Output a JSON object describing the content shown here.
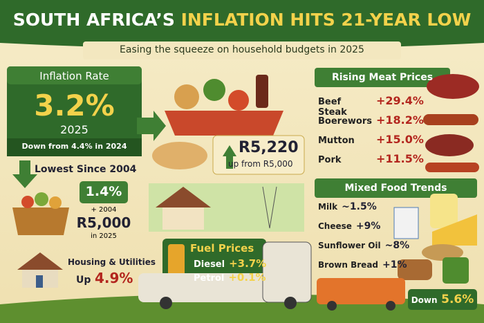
{
  "header": {
    "title_lead": "SOUTH AFRICA’S",
    "title_highlight": "INFLATION HITS 21-YEAR LOW",
    "subtitle": "Easing the squeeze on household budgets in 2025"
  },
  "inflation": {
    "label": "Inflation Rate",
    "value": "3.2%",
    "year": "2025",
    "note": "Down from 4.4% in 2024"
  },
  "lowest": {
    "label": "Lowest Since 2004",
    "value": "1.4%",
    "year": "+ 2004",
    "amount": "R5,000",
    "amount_year": "in 2025"
  },
  "housing": {
    "label": "Housing & Utilities",
    "prefix": "Up",
    "value": "4.9%"
  },
  "basket": {
    "price": "R5,220",
    "note": "up from R5,000"
  },
  "fuel": {
    "title": "Fuel Prices",
    "items": [
      {
        "name": "Diesel",
        "change": "+3.7%"
      },
      {
        "name": "Petrol",
        "change": "+0.1%"
      }
    ]
  },
  "meat": {
    "title": "Rising Meat Prices",
    "items": [
      {
        "name": "Beef Steak",
        "change": "+29.4%"
      },
      {
        "name": "Boerewors",
        "change": "+18.2%"
      },
      {
        "name": "Mutton",
        "change": "+15.0%"
      },
      {
        "name": "Pork",
        "change": "+11.5%"
      }
    ]
  },
  "food": {
    "title": "Mixed Food Trends",
    "items": [
      {
        "name": "Milk",
        "change": "~1.5%"
      },
      {
        "name": "Cheese",
        "change": "+9%"
      },
      {
        "name": "Sunflower Oil",
        "change": "~8%"
      },
      {
        "name": "Brown Bread",
        "change": "+1%"
      }
    ]
  },
  "transport": {
    "label": "Down",
    "value": "5.6%"
  }
}
